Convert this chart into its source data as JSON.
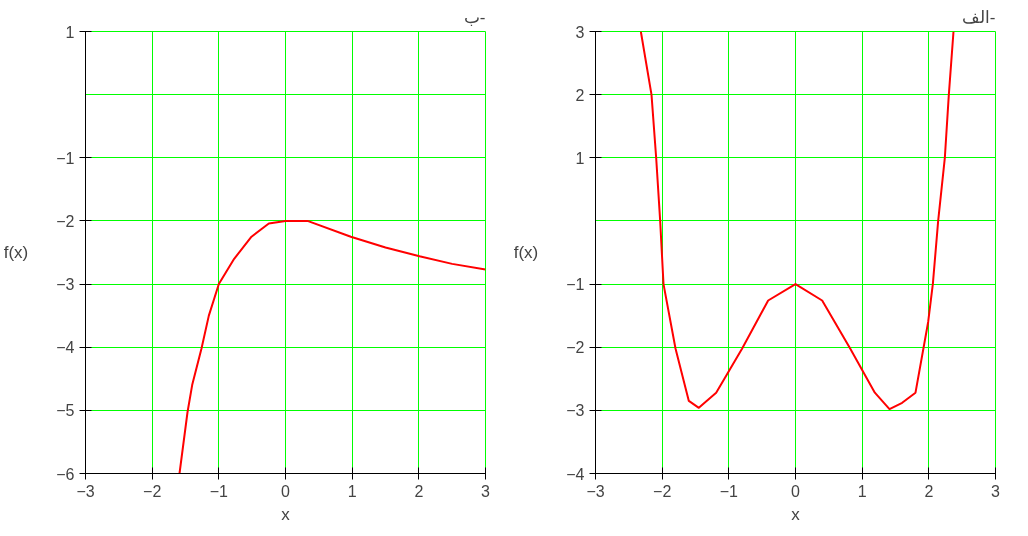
{
  "chart_data": [
    {
      "type": "line",
      "title": "ب-",
      "xlabel": "x",
      "ylabel": "f(x)",
      "xlim": [
        -3,
        3
      ],
      "ylim": [
        -6,
        1
      ],
      "xticks": [
        -3,
        -2,
        -1,
        0,
        1,
        2,
        3
      ],
      "yticks": [
        -6,
        -5,
        -4,
        -3,
        -2,
        -1,
        1
      ],
      "grid": true,
      "series": [
        {
          "color": "#ff0000",
          "x": [
            -1.59,
            -1.47,
            -1.4,
            -1.26,
            -1.15,
            -1.0,
            -0.77,
            -0.51,
            -0.25,
            0,
            0.33,
            0.98,
            1.5,
            2.01,
            2.5,
            3
          ],
          "values": [
            -6,
            -5.03,
            -4.6,
            -4.02,
            -3.5,
            -3,
            -2.6,
            -2.25,
            -2.04,
            -2,
            -2.0,
            -2.25,
            -2.42,
            -2.56,
            -2.68,
            -2.77
          ]
        }
      ]
    },
    {
      "type": "line",
      "title": "الف-",
      "xlabel": "x",
      "ylabel": "f(x)",
      "xlim": [
        -3,
        3
      ],
      "ylim": [
        -4,
        3
      ],
      "xticks": [
        -3,
        -2,
        -1,
        0,
        1,
        2,
        3
      ],
      "yticks": [
        -4,
        -3,
        -2,
        -1,
        1,
        2,
        3
      ],
      "grid": true,
      "series": [
        {
          "color": "#ff0000",
          "x": [
            -2.32,
            -2.16,
            -2.09,
            -2.03,
            -1.98,
            -1.8,
            -1.6,
            -1.45,
            -1.19,
            -0.8,
            -0.41,
            0,
            0.4,
            0.82,
            1.19,
            1.41,
            1.6,
            1.8,
            1.99,
            2.06,
            2.14,
            2.24,
            2.3,
            2.37
          ],
          "values": [
            3,
            2,
            1,
            0,
            -1,
            -2.02,
            -2.85,
            -2.96,
            -2.72,
            -2.02,
            -1.26,
            -1,
            -1.26,
            -2.02,
            -2.72,
            -2.98,
            -2.88,
            -2.72,
            -1.6,
            -1,
            0,
            1,
            2,
            3
          ]
        }
      ]
    }
  ]
}
